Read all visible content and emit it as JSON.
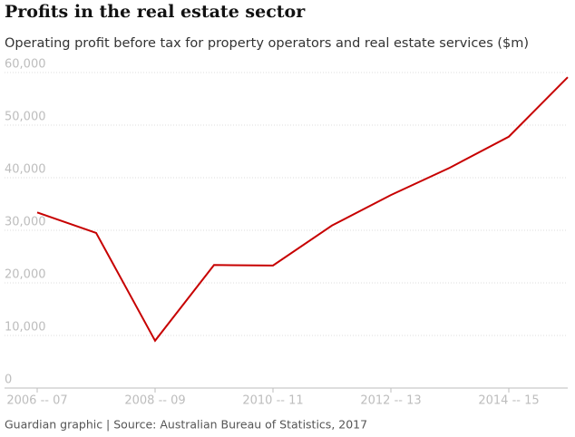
{
  "chart_data": {
    "type": "line",
    "title": "Profits in the real estate sector",
    "subtitle": "Operating profit before tax for property operators and real estate services ($m)",
    "source": "Guardian graphic | Source: Australian Bureau of Statistics, 2017",
    "categories": [
      "2006 -- 07",
      null,
      "2008 -- 09",
      null,
      "2010 -- 11",
      null,
      "2012 -- 13",
      null,
      "2014 -- 15",
      null
    ],
    "series": [
      {
        "name": "Operating profit",
        "color": "#c70000",
        "values": [
          33400,
          29500,
          9000,
          23400,
          23300,
          30900,
          36700,
          41900,
          47800,
          59100
        ]
      }
    ],
    "ylim": [
      0,
      60000
    ],
    "yticks": [
      0,
      {
        "value": 10000,
        "label": "10,000"
      },
      {
        "value": 20000,
        "label": "20,000"
      },
      {
        "value": 30000,
        "label": "30,000"
      },
      {
        "value": 40000,
        "label": "40,000"
      },
      {
        "value": 50000,
        "label": "50,000"
      },
      {
        "value": 60000,
        "label": "60,000"
      }
    ],
    "grid": true
  }
}
